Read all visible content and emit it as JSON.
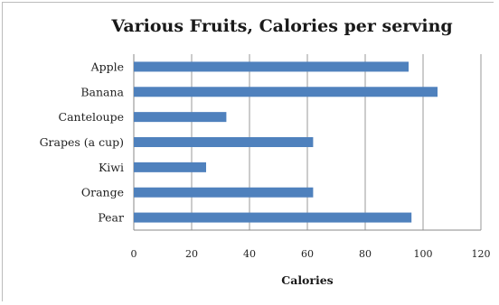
{
  "chart_data": {
    "type": "bar",
    "orientation": "horizontal",
    "title": "Various Fruits, Calories per serving",
    "xlabel": "Calories",
    "ylabel": "",
    "categories": [
      "Apple",
      "Banana",
      "Canteloupe",
      "Grapes (a cup)",
      "Kiwi",
      "Orange",
      "Pear"
    ],
    "values": [
      95,
      105,
      32,
      62,
      25,
      62,
      96
    ],
    "xlim": [
      0,
      120
    ],
    "xticks": [
      0,
      20,
      40,
      60,
      80,
      100,
      120
    ],
    "grid": true,
    "bar_color": "#4f81bd"
  }
}
